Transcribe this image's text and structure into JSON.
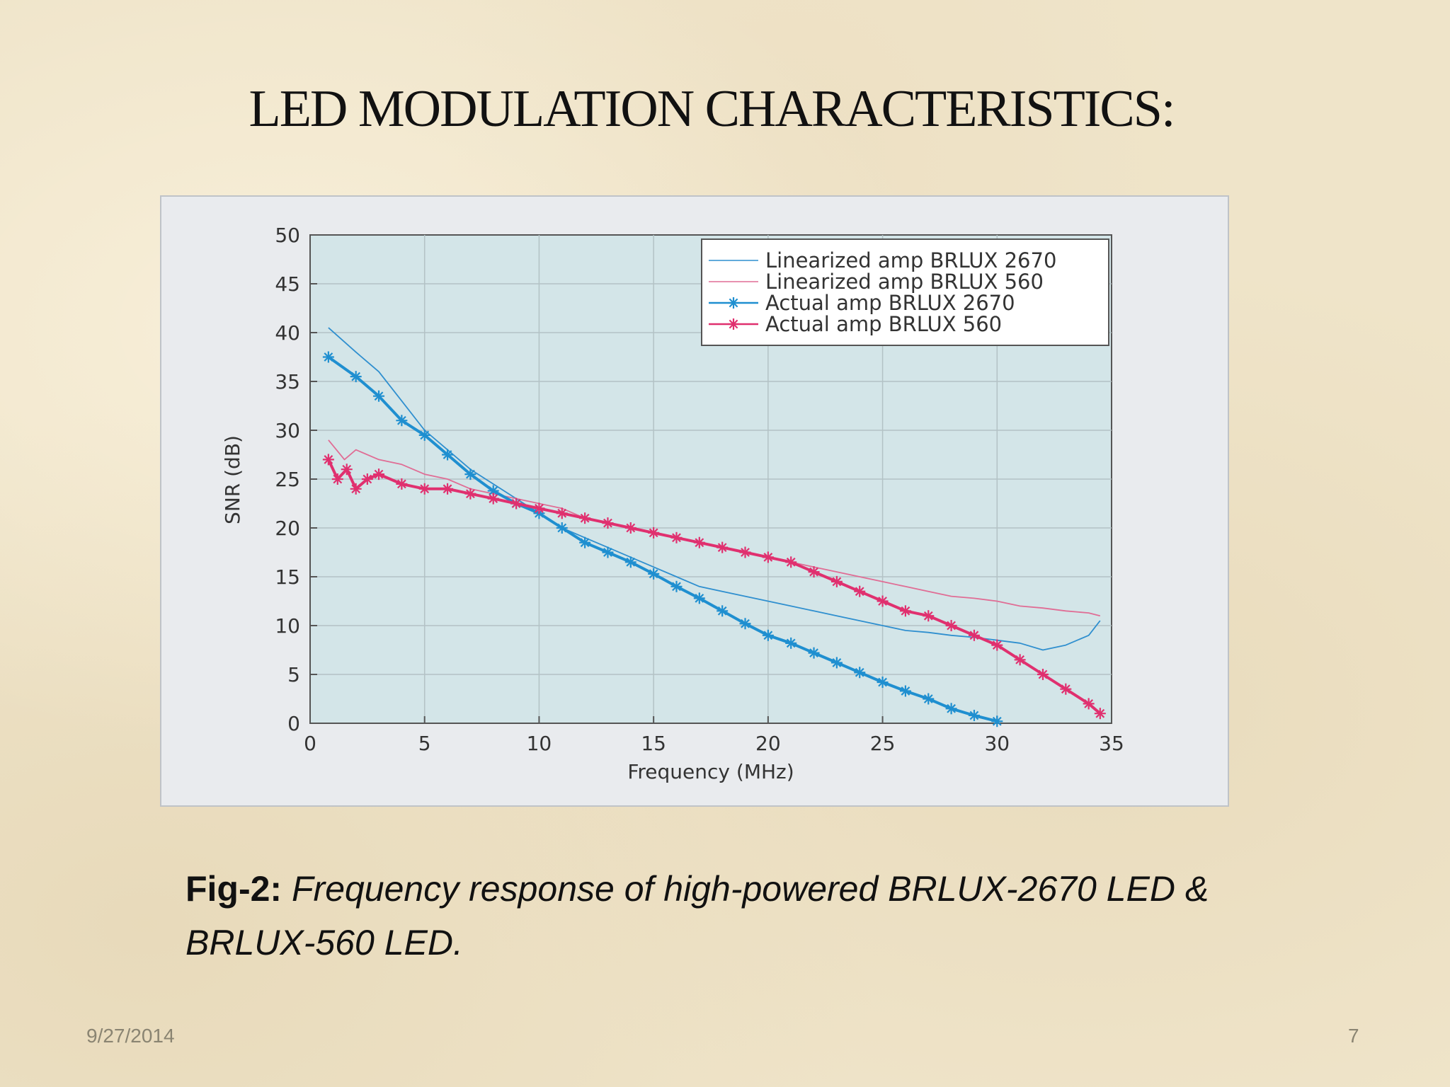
{
  "slide": {
    "title": "LED MODULATION CHARACTERISTICS:",
    "caption_label": "Fig-2:",
    "caption_text": "Frequency response of high-powered BRLUX-2670 LED & BRLUX-560 LED.",
    "date": "9/27/2014",
    "page_number": "7"
  },
  "chart_data": {
    "type": "line",
    "title": "",
    "xlabel": "Frequency (MHz)",
    "ylabel": "SNR (dB)",
    "xlim": [
      0,
      35
    ],
    "ylim": [
      0,
      50
    ],
    "xticks": [
      0,
      5,
      10,
      15,
      20,
      25,
      30,
      35
    ],
    "yticks": [
      0,
      5,
      10,
      15,
      20,
      25,
      30,
      35,
      40,
      45,
      50
    ],
    "grid": true,
    "legend_position": "top-right",
    "series": [
      {
        "name": "Linearized amp BRLUX 2670",
        "color": "#2f8fcf",
        "marker": "none",
        "x": [
          0.8,
          2,
          3,
          4,
          5,
          6,
          7,
          8,
          9,
          10,
          11,
          12,
          13,
          14,
          15,
          16,
          17,
          18,
          19,
          20,
          21,
          22,
          23,
          24,
          25,
          26,
          27,
          28,
          29,
          30,
          31,
          32,
          33,
          34,
          34.5
        ],
        "y": [
          40.5,
          38,
          36,
          33,
          30,
          28,
          26,
          24.5,
          23,
          21.5,
          20,
          19,
          18,
          17,
          16,
          15,
          14,
          13.5,
          13,
          12.5,
          12,
          11.5,
          11,
          10.5,
          10,
          9.5,
          9.3,
          9,
          8.8,
          8.5,
          8.2,
          7.5,
          8,
          9,
          10.5
        ]
      },
      {
        "name": "Linearized amp BRLUX 560",
        "color": "#e06d95",
        "marker": "none",
        "x": [
          0.8,
          1.5,
          2,
          3,
          4,
          5,
          6,
          7,
          8,
          9,
          10,
          11,
          12,
          13,
          14,
          15,
          16,
          17,
          18,
          19,
          20,
          21,
          22,
          23,
          24,
          25,
          26,
          27,
          28,
          29,
          30,
          31,
          32,
          33,
          34,
          34.5
        ],
        "y": [
          29,
          27,
          28,
          27,
          26.5,
          25.5,
          25,
          24,
          23.5,
          23,
          22.5,
          22,
          21,
          20.5,
          20,
          19.5,
          19,
          18.5,
          18,
          17.5,
          17,
          16.5,
          16,
          15.5,
          15,
          14.5,
          14,
          13.5,
          13,
          12.8,
          12.5,
          12,
          11.8,
          11.5,
          11.3,
          11
        ]
      },
      {
        "name": "Actual amp BRLUX 2670",
        "color": "#1f8fd0",
        "marker": "asterisk",
        "x": [
          0.8,
          2,
          3,
          4,
          5,
          6,
          7,
          8,
          9,
          10,
          11,
          12,
          13,
          14,
          15,
          16,
          17,
          18,
          19,
          20,
          21,
          22,
          23,
          24,
          25,
          26,
          27,
          28,
          29,
          30
        ],
        "y": [
          37.5,
          35.5,
          33.5,
          31,
          29.5,
          27.5,
          25.5,
          23.8,
          22.5,
          21.5,
          20,
          18.5,
          17.5,
          16.5,
          15.3,
          14,
          12.8,
          11.5,
          10.2,
          9,
          8.2,
          7.2,
          6.2,
          5.2,
          4.2,
          3.3,
          2.5,
          1.5,
          0.8,
          0.2
        ]
      },
      {
        "name": "Actual amp BRLUX 560",
        "color": "#e0306f",
        "marker": "asterisk",
        "x": [
          0.8,
          1.2,
          1.6,
          2,
          2.5,
          3,
          4,
          5,
          6,
          7,
          8,
          9,
          10,
          11,
          12,
          13,
          14,
          15,
          16,
          17,
          18,
          19,
          20,
          21,
          22,
          23,
          24,
          25,
          26,
          27,
          28,
          29,
          30,
          31,
          32,
          33,
          34,
          34.5
        ],
        "y": [
          27,
          25,
          26,
          24,
          25,
          25.5,
          24.5,
          24,
          24,
          23.5,
          23,
          22.5,
          22,
          21.5,
          21,
          20.5,
          20,
          19.5,
          19,
          18.5,
          18,
          17.5,
          17,
          16.5,
          15.5,
          14.5,
          13.5,
          12.5,
          11.5,
          11,
          10,
          9,
          8,
          6.5,
          5,
          3.5,
          2,
          1
        ]
      }
    ]
  }
}
